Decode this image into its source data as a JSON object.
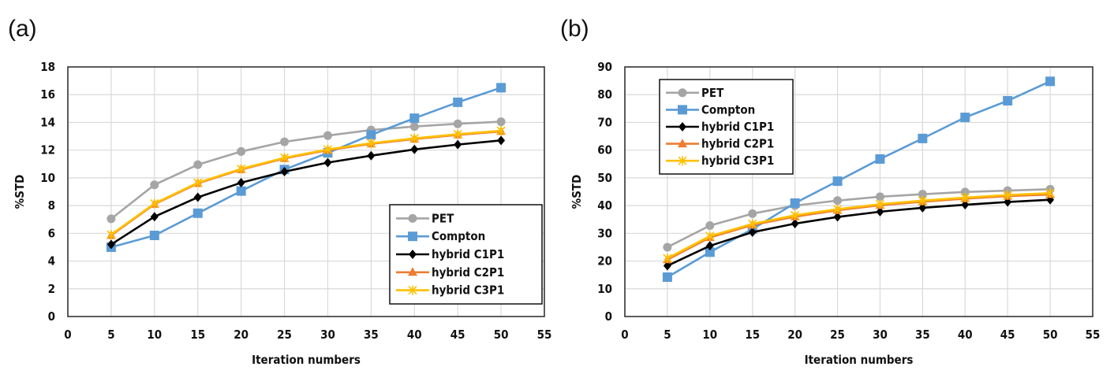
{
  "figure": {
    "panels": [
      {
        "label": "(a)"
      },
      {
        "label": "(b)"
      }
    ]
  },
  "series_styles": [
    {
      "name": "PET",
      "color": "#a5a5a5",
      "marker": "circle"
    },
    {
      "name": "Compton",
      "color": "#5b9bd5",
      "marker": "square"
    },
    {
      "name": "hybrid C1P1",
      "color": "#000000",
      "marker": "diamond"
    },
    {
      "name": "hybrid C2P1",
      "color": "#ed7d31",
      "marker": "triangle"
    },
    {
      "name": "hybrid C3P1",
      "color": "#ffc000",
      "marker": "x"
    }
  ],
  "chart_data": [
    {
      "type": "line",
      "panel": "(a)",
      "title": "",
      "xlabel": "Iteration numbers",
      "ylabel": "%STD",
      "xlim": [
        0,
        55
      ],
      "ylim": [
        0,
        18
      ],
      "xticks": [
        0,
        5,
        10,
        15,
        20,
        25,
        30,
        35,
        40,
        45,
        50,
        55
      ],
      "yticks": [
        0,
        2,
        4,
        6,
        8,
        10,
        12,
        14,
        16,
        18
      ],
      "grid": true,
      "legend_position": "bottom-right",
      "x": [
        5,
        10,
        15,
        20,
        25,
        30,
        35,
        40,
        45,
        50
      ],
      "series": [
        {
          "name": "PET",
          "values": [
            7.05,
            9.5,
            10.95,
            11.9,
            12.6,
            13.05,
            13.45,
            13.7,
            13.9,
            14.05
          ]
        },
        {
          "name": "Compton",
          "values": [
            5.0,
            5.85,
            7.45,
            9.05,
            10.6,
            11.8,
            13.1,
            14.3,
            15.45,
            16.5
          ]
        },
        {
          "name": "hybrid C1P1",
          "values": [
            5.2,
            7.2,
            8.6,
            9.65,
            10.45,
            11.1,
            11.6,
            12.05,
            12.4,
            12.7
          ]
        },
        {
          "name": "hybrid C2P1",
          "values": [
            5.85,
            8.1,
            9.6,
            10.6,
            11.4,
            12.0,
            12.45,
            12.8,
            13.1,
            13.35
          ]
        },
        {
          "name": "hybrid C3P1",
          "values": [
            5.9,
            8.15,
            9.65,
            10.65,
            11.45,
            12.05,
            12.5,
            12.85,
            13.15,
            13.4
          ]
        }
      ]
    },
    {
      "type": "line",
      "panel": "(b)",
      "title": "",
      "xlabel": "Iteration numbers",
      "ylabel": "%STD",
      "xlim": [
        0,
        55
      ],
      "ylim": [
        0,
        90
      ],
      "xticks": [
        0,
        5,
        10,
        15,
        20,
        25,
        30,
        35,
        40,
        45,
        50,
        55
      ],
      "yticks": [
        0,
        10,
        20,
        30,
        40,
        50,
        60,
        70,
        80,
        90
      ],
      "grid": true,
      "legend_position": "top-left",
      "x": [
        5,
        10,
        15,
        20,
        25,
        30,
        35,
        40,
        45,
        50
      ],
      "series": [
        {
          "name": "PET",
          "values": [
            25.0,
            32.8,
            37.1,
            40.0,
            41.8,
            43.2,
            44.1,
            44.9,
            45.4,
            45.9
          ]
        },
        {
          "name": "Compton",
          "values": [
            14.2,
            23.2,
            31.5,
            40.9,
            48.8,
            56.8,
            64.2,
            71.8,
            77.8,
            84.8
          ]
        },
        {
          "name": "hybrid C1P1",
          "values": [
            18.3,
            25.5,
            30.4,
            33.5,
            35.9,
            37.8,
            39.2,
            40.3,
            41.3,
            42.1
          ]
        },
        {
          "name": "hybrid C2P1",
          "values": [
            20.5,
            28.5,
            33.0,
            36.0,
            38.3,
            40.1,
            41.4,
            42.5,
            43.4,
            44.0
          ]
        },
        {
          "name": "hybrid C3P1",
          "values": [
            21.0,
            29.0,
            33.4,
            36.5,
            38.7,
            40.5,
            41.8,
            42.9,
            43.8,
            44.5
          ]
        }
      ]
    }
  ]
}
